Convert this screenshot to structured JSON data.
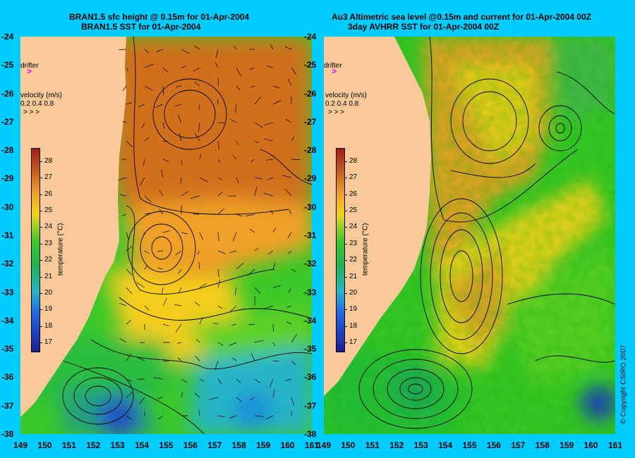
{
  "left_panel": {
    "title_line1": "BRAN1.5 sfc height @ 0.15m for 01-Apr-2004",
    "title_line2": "BRAN1.5 SST for 01-Apr-2004"
  },
  "right_panel": {
    "title_line1": "Au3 Altimetric sea level  @0.15m and current for 01-Apr-2004 00Z",
    "title_line2": "3day AVHRR SST for 01-Apr-2004 00Z"
  },
  "overlay": {
    "drifter_label": "drifter",
    "drifter_marker": ">",
    "velocity_title": "velocity (m/s)",
    "velocity_values": "0.2 0.4 0.8",
    "velocity_arrows": "> > >"
  },
  "colorbar": {
    "label": "temperature (°C)",
    "ticks": [
      "28",
      "27",
      "26",
      "25",
      "24",
      "23",
      "22",
      "21",
      "20",
      "19",
      "18",
      "17"
    ]
  },
  "latitude_ticks": [
    "-24",
    "-25",
    "-26",
    "-27",
    "-28",
    "-29",
    "-30",
    "-31",
    "-32",
    "-33",
    "-34",
    "-35",
    "-36",
    "-37",
    "-38"
  ],
  "longitude_ticks_left": [
    "149",
    "150",
    "151",
    "152",
    "153",
    "154",
    "155",
    "156",
    "157",
    "158",
    "159",
    "160",
    "161"
  ],
  "longitude_ticks_right": [
    "149",
    "150",
    "151",
    "152",
    "153",
    "154",
    "155",
    "156",
    "157",
    "158",
    "159",
    "160",
    "161"
  ],
  "copyright": "© Copyright CSIRO 2007",
  "colors": {
    "background": "#00ccff",
    "land": "#fac999",
    "warm": "#c8641e",
    "orange": "#f0a028",
    "yellow": "#f5d21e",
    "green": "#3cc828",
    "cool_green": "#1eb450",
    "cyan": "#28b4c8",
    "blue": "#1e3cc8",
    "drifter": "#ff00ff"
  },
  "chart_data": {
    "type": "heatmap",
    "x_range": [
      149,
      161
    ],
    "y_range": [
      -38,
      -24
    ],
    "colorbar_range": [
      16.5,
      28.8
    ],
    "colorbar_label": "temperature (°C)"
  }
}
